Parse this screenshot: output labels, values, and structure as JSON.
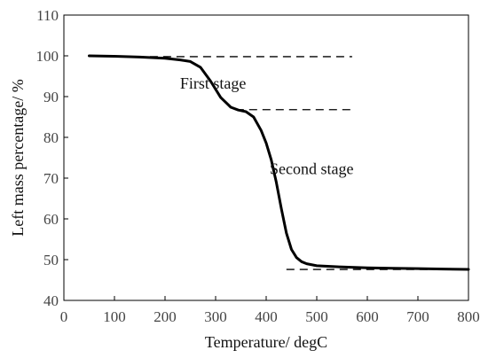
{
  "chart_data": {
    "type": "line",
    "title": "",
    "xlabel": "Temperature/ degC",
    "ylabel": "Left mass percentage/ %",
    "xlim": [
      0,
      800
    ],
    "ylim": [
      40,
      110
    ],
    "xticks": [
      "0",
      "100",
      "200",
      "300",
      "400",
      "500",
      "600",
      "700",
      "800"
    ],
    "yticks": [
      "40",
      "50",
      "60",
      "70",
      "80",
      "90",
      "100",
      "110"
    ],
    "grid": false,
    "legend": "none",
    "line_color": "#000000",
    "series": [
      {
        "x": [
          50,
          100,
          150,
          200,
          230,
          250,
          270,
          290,
          310,
          330,
          345,
          360,
          375,
          390,
          400,
          410,
          420,
          430,
          440,
          450,
          460,
          470,
          480,
          500,
          550,
          600,
          650,
          700,
          750,
          800
        ],
        "values": [
          100,
          99.9,
          99.7,
          99.4,
          99.0,
          98.6,
          97.2,
          93.8,
          89.8,
          87.4,
          86.7,
          86.3,
          85.0,
          81.7,
          78.6,
          74.5,
          69.0,
          62.5,
          56.5,
          52.5,
          50.5,
          49.5,
          49.0,
          48.5,
          48.2,
          48.0,
          47.9,
          47.8,
          47.7,
          47.6
        ]
      }
    ],
    "reference_lines": [
      {
        "x": [
          170,
          570
        ],
        "y": 99.8
      },
      {
        "x": [
          340,
          570
        ],
        "y": 86.8
      },
      {
        "x": [
          440,
          800
        ],
        "y": 47.6
      }
    ],
    "annotations": [
      {
        "text": "First stage",
        "x": 295,
        "y": 92
      },
      {
        "text": "Second stage",
        "x": 490,
        "y": 71
      }
    ]
  }
}
